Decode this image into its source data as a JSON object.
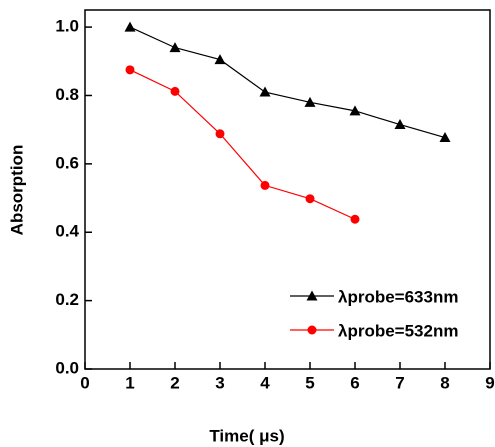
{
  "chart_data": {
    "type": "line",
    "x_label": "Time(  μs)",
    "y_label": "Absorption",
    "x": [
      1,
      2,
      3,
      4,
      5,
      6,
      7,
      8
    ],
    "series": [
      {
        "name": "λprobe=633nm",
        "color": "#000000",
        "marker": "triangle",
        "values": [
          1.0,
          0.94,
          0.905,
          0.81,
          0.78,
          0.755,
          0.715,
          0.677
        ]
      },
      {
        "name": "λprobe=532nm",
        "color": "#ff0000",
        "marker": "circle",
        "values": [
          0.875,
          0.812,
          0.688,
          0.537,
          0.498,
          0.438,
          null,
          null
        ]
      }
    ],
    "xlim": [
      0,
      9
    ],
    "xticks": [
      0,
      1,
      2,
      3,
      4,
      5,
      6,
      7,
      8,
      9
    ],
    "ylim": [
      0,
      1.05
    ],
    "yticks": [
      {
        "value": 0,
        "label": "0.0"
      },
      {
        "value": 0.2,
        "label": "0.2"
      },
      {
        "value": 0.4,
        "label": "0.4"
      },
      {
        "value": 0.6,
        "label": "0.6"
      },
      {
        "value": 0.8,
        "label": "0.8"
      },
      {
        "value": 1.0,
        "label": "1.0"
      }
    ],
    "legend": "lower right"
  }
}
